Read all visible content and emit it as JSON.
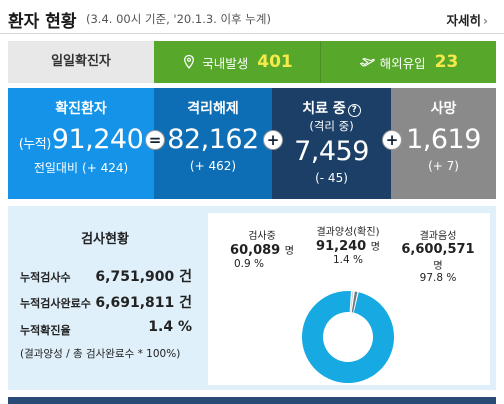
{
  "header": {
    "title": "환자 현황",
    "subtitle": "(3.4. 00시 기준, '20.1.3. 이후 누계)",
    "more_label": "자세히",
    "more_icon": "chevron-right-icon"
  },
  "daily": {
    "label": "일일확진자",
    "domestic": {
      "name": "국내발생",
      "value": "401",
      "icon": "map-pin-icon"
    },
    "overseas": {
      "name": "해외유입",
      "value": "23",
      "icon": "airplane-icon"
    },
    "accent_color": "#57a72a",
    "number_color": "#f6e94c"
  },
  "stats": {
    "confirmed": {
      "title": "확진환자",
      "prefix": "(누적)",
      "value": "91,240",
      "delta_label": "전일대비",
      "delta": "(+ 424)",
      "color": "#1493e8"
    },
    "released": {
      "title": "격리해제",
      "value": "82,162",
      "delta": "(+ 462)",
      "color": "#0e6eb5"
    },
    "treatment": {
      "title": "치료 중",
      "sub_title": "(격리 중)",
      "value": "7,459",
      "delta": "(- 45)",
      "color": "#1b3f66"
    },
    "death": {
      "title": "사망",
      "value": "1,619",
      "delta": "(+ 7)",
      "color": "#8a8a8a"
    },
    "operators": {
      "eq": "=",
      "plus": "+"
    }
  },
  "tests": {
    "title": "검사현황",
    "rows": [
      {
        "label": "누적검사수",
        "value": "6,751,900 건"
      },
      {
        "label": "누적검사완료수",
        "value": "6,691,811 건"
      },
      {
        "label": "누적확진율",
        "value": "1.4 %"
      }
    ],
    "note": "(결과양성 / 총 검사완료수 * 100%)"
  },
  "chart_data": {
    "type": "pie",
    "donut": true,
    "title": "",
    "slices": [
      {
        "name": "결과음성",
        "value": 6600571,
        "value_text": "6,600,571",
        "unit": "명",
        "percent": 97.8,
        "percent_text": "97.8 %",
        "color": "#17a9e1"
      },
      {
        "name": "검사중",
        "value": 60089,
        "value_text": "60,089",
        "unit": "명",
        "percent": 0.9,
        "percent_text": "0.9 %",
        "color": "#cfd4d9"
      },
      {
        "name": "결과양성(확진)",
        "value": 91240,
        "value_text": "91,240",
        "unit": "명",
        "percent": 1.4,
        "percent_text": "1.4 %",
        "color": "#6d7a86"
      }
    ]
  }
}
